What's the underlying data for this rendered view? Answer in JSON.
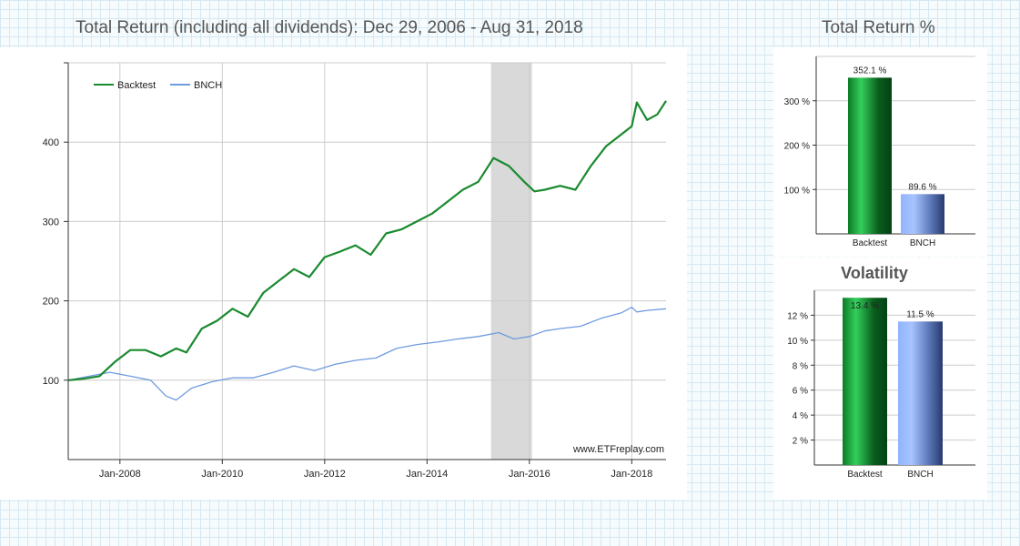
{
  "header": {
    "main_title": "Total Return (including all dividends): Dec 29, 2006 - Aug 31, 2018",
    "total_return_title": "Total Return %",
    "volatility_title": "Volatility",
    "watermark": "www.ETFreplay.com"
  },
  "colors": {
    "backtest": "#1a8a2e",
    "bnch": "#6f9be0",
    "grid": "#cccccc",
    "highlight": "#d9d9d9",
    "axis": "#333333"
  },
  "chart_data": [
    {
      "type": "line",
      "title": "Total Return (including all dividends): Dec 29, 2006 - Aug 31, 2018",
      "xlabel": "",
      "ylabel": "",
      "xlim": [
        2006.99,
        2018.67
      ],
      "ylim": [
        0,
        500
      ],
      "x_ticks": [
        2008,
        2010,
        2012,
        2014,
        2016,
        2018
      ],
      "x_tick_labels": [
        "Jan-2008",
        "Jan-2010",
        "Jan-2012",
        "Jan-2014",
        "Jan-2016",
        "Jan-2018"
      ],
      "y_ticks": [
        100,
        200,
        300,
        400
      ],
      "y_tick_labels": [
        "100",
        "200",
        "300",
        "400"
      ],
      "highlight_region": [
        2015.25,
        2016.05
      ],
      "legend": [
        "Backtest",
        "BNCH"
      ],
      "legend_position": "top-left",
      "series": [
        {
          "name": "Backtest",
          "x": [
            2007.0,
            2007.3,
            2007.6,
            2007.9,
            2008.2,
            2008.5,
            2008.8,
            2009.1,
            2009.3,
            2009.6,
            2009.9,
            2010.2,
            2010.5,
            2010.8,
            2011.1,
            2011.4,
            2011.7,
            2012.0,
            2012.3,
            2012.6,
            2012.9,
            2013.2,
            2013.5,
            2013.8,
            2014.1,
            2014.4,
            2014.7,
            2015.0,
            2015.3,
            2015.6,
            2015.9,
            2016.1,
            2016.3,
            2016.6,
            2016.9,
            2017.2,
            2017.5,
            2017.8,
            2018.0,
            2018.1,
            2018.3,
            2018.5,
            2018.67
          ],
          "y": [
            100,
            102,
            105,
            123,
            138,
            138,
            130,
            140,
            135,
            165,
            175,
            190,
            180,
            210,
            225,
            240,
            230,
            255,
            262,
            270,
            258,
            285,
            290,
            300,
            310,
            325,
            340,
            350,
            380,
            370,
            350,
            338,
            340,
            345,
            340,
            370,
            395,
            410,
            420,
            450,
            428,
            435,
            452
          ]
        },
        {
          "name": "BNCH",
          "x": [
            2007.0,
            2007.4,
            2007.8,
            2008.2,
            2008.6,
            2008.9,
            2009.1,
            2009.4,
            2009.8,
            2010.2,
            2010.6,
            2011.0,
            2011.4,
            2011.8,
            2012.2,
            2012.6,
            2013.0,
            2013.4,
            2013.8,
            2014.2,
            2014.6,
            2015.0,
            2015.4,
            2015.7,
            2016.0,
            2016.3,
            2016.6,
            2017.0,
            2017.4,
            2017.8,
            2018.0,
            2018.1,
            2018.3,
            2018.67
          ],
          "y": [
            100,
            105,
            110,
            105,
            100,
            80,
            75,
            90,
            98,
            103,
            103,
            110,
            118,
            112,
            120,
            125,
            128,
            140,
            145,
            148,
            152,
            155,
            160,
            152,
            155,
            162,
            165,
            168,
            178,
            185,
            192,
            186,
            188,
            190
          ]
        }
      ]
    },
    {
      "type": "bar",
      "title": "Total Return %",
      "categories": [
        "Backtest",
        "BNCH"
      ],
      "values": [
        352.1,
        89.6
      ],
      "data_labels": [
        "352.1 %",
        "89.6 %"
      ],
      "ylim": [
        0,
        400
      ],
      "y_ticks": [
        100,
        200,
        300
      ],
      "y_tick_labels": [
        "100 %",
        "200 %",
        "300 %"
      ]
    },
    {
      "type": "bar",
      "title": "Volatility",
      "categories": [
        "Backtest",
        "BNCH"
      ],
      "values": [
        13.4,
        11.5
      ],
      "data_labels": [
        "13.4 %",
        "11.5 %"
      ],
      "ylim": [
        0,
        14
      ],
      "y_ticks": [
        2,
        4,
        6,
        8,
        10,
        12
      ],
      "y_tick_labels": [
        "2 %",
        "4 %",
        "6 %",
        "8 %",
        "10 %",
        "12 %"
      ]
    }
  ]
}
